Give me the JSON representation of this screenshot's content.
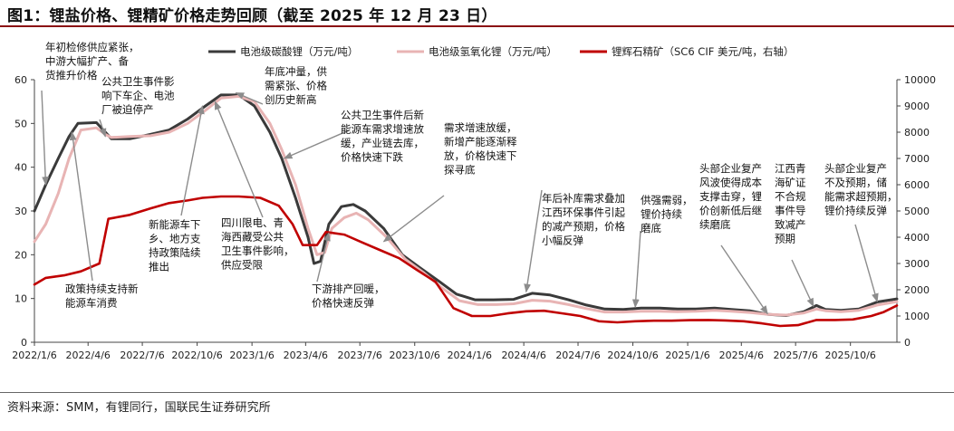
{
  "title": "图1：锂盐价格、锂精矿价格走势回顾（截至 2025 年 12 月 23 日）",
  "source": "资料来源：SMM，有锂同行，国联民生证券研究所",
  "chart_data": {
    "type": "line",
    "legend": [
      "电池级碳酸锂（万元/吨）",
      "电池级氢氧化锂（万元/吨）",
      "锂辉石精矿（SC6 CIF 美元/吨，右轴）"
    ],
    "legend_position": "top",
    "xlabels": [
      "2022/1/6",
      "2022/4/6",
      "2022/7/6",
      "2022/10/6",
      "2023/1/6",
      "2023/4/6",
      "2023/7/6",
      "2023/10/6",
      "2024/1/6",
      "2024/4/6",
      "2024/7/6",
      "2024/10/6",
      "2025/1/6",
      "2025/4/6",
      "2025/7/6",
      "2025/10/6"
    ],
    "x_start": "2022/1/6",
    "x_end": "2025/12/23",
    "ylim_left": [
      0,
      60
    ],
    "yticks_left": [
      "0",
      "10",
      "20",
      "30",
      "40",
      "50",
      "60"
    ],
    "ylim_right": [
      0,
      10000
    ],
    "yticks_right": [
      "0",
      "1000",
      "2000",
      "3000",
      "4000",
      "5000",
      "6000",
      "7000",
      "8000",
      "9000",
      "10000"
    ],
    "grid": false,
    "series": [
      {
        "name": "电池级碳酸锂（万元/吨）",
        "axis": "left",
        "color": "#3a3a3a",
        "points": [
          [
            "2022/1/6",
            30
          ],
          [
            "2022/1/25",
            36
          ],
          [
            "2022/2/15",
            42
          ],
          [
            "2022/3/5",
            47
          ],
          [
            "2022/3/20",
            50
          ],
          [
            "2022/4/20",
            50.2
          ],
          [
            "2022/5/5",
            48
          ],
          [
            "2022/5/15",
            46.5
          ],
          [
            "2022/6/15",
            46.5
          ],
          [
            "2022/7/20",
            47.5
          ],
          [
            "2022/8/20",
            48.5
          ],
          [
            "2022/9/20",
            51
          ],
          [
            "2022/10/20",
            54
          ],
          [
            "2022/11/15",
            56.5
          ],
          [
            "2022/12/15",
            56.5
          ],
          [
            "2023/1/10",
            54
          ],
          [
            "2023/2/5",
            48
          ],
          [
            "2023/2/25",
            42
          ],
          [
            "2023/3/20",
            33
          ],
          [
            "2023/4/10",
            24
          ],
          [
            "2023/4/20",
            18
          ],
          [
            "2023/5/1",
            18.5
          ],
          [
            "2023/5/15",
            27
          ],
          [
            "2023/6/5",
            31
          ],
          [
            "2023/6/25",
            31.5
          ],
          [
            "2023/7/15",
            30
          ],
          [
            "2023/8/15",
            26
          ],
          [
            "2023/9/15",
            20
          ],
          [
            "2023/10/15",
            17
          ],
          [
            "2023/11/15",
            14
          ],
          [
            "2023/12/15",
            11
          ],
          [
            "2024/1/15",
            9.7
          ],
          [
            "2024/2/15",
            9.7
          ],
          [
            "2024/3/20",
            9.8
          ],
          [
            "2024/4/20",
            11.2
          ],
          [
            "2024/5/20",
            10.8
          ],
          [
            "2024/6/20",
            9.7
          ],
          [
            "2024/7/20",
            8.5
          ],
          [
            "2024/8/20",
            7.6
          ],
          [
            "2024/9/20",
            7.5
          ],
          [
            "2024/10/20",
            7.8
          ],
          [
            "2024/11/20",
            7.8
          ],
          [
            "2024/12/20",
            7.6
          ],
          [
            "2025/1/20",
            7.6
          ],
          [
            "2025/2/20",
            7.8
          ],
          [
            "2025/3/20",
            7.5
          ],
          [
            "2025/4/20",
            7.2
          ],
          [
            "2025/5/20",
            6.4
          ],
          [
            "2025/6/20",
            6.1
          ],
          [
            "2025/7/20",
            7.0
          ],
          [
            "2025/8/10",
            8.4
          ],
          [
            "2025/8/25",
            7.5
          ],
          [
            "2025/9/20",
            7.3
          ],
          [
            "2025/10/20",
            7.6
          ],
          [
            "2025/11/20",
            9.2
          ],
          [
            "2025/12/23",
            9.9
          ]
        ]
      },
      {
        "name": "电池级氢氧化锂（万元/吨）",
        "axis": "left",
        "color": "#e8b4b4",
        "points": [
          [
            "2022/1/6",
            23
          ],
          [
            "2022/1/25",
            27
          ],
          [
            "2022/2/15",
            34
          ],
          [
            "2022/3/5",
            42
          ],
          [
            "2022/3/25",
            48.5
          ],
          [
            "2022/4/20",
            49
          ],
          [
            "2022/5/5",
            47.5
          ],
          [
            "2022/5/15",
            46.8
          ],
          [
            "2022/6/15",
            47
          ],
          [
            "2022/7/20",
            47.2
          ],
          [
            "2022/8/20",
            48
          ],
          [
            "2022/9/20",
            50
          ],
          [
            "2022/10/20",
            53
          ],
          [
            "2022/11/15",
            55.8
          ],
          [
            "2022/12/15",
            56.2
          ],
          [
            "2023/1/10",
            55
          ],
          [
            "2023/2/5",
            50
          ],
          [
            "2023/2/25",
            44
          ],
          [
            "2023/3/20",
            36
          ],
          [
            "2023/4/10",
            26
          ],
          [
            "2023/4/25",
            20
          ],
          [
            "2023/5/8",
            20.5
          ],
          [
            "2023/5/20",
            26
          ],
          [
            "2023/6/10",
            28.5
          ],
          [
            "2023/6/30",
            29.5
          ],
          [
            "2023/7/20",
            28
          ],
          [
            "2023/8/20",
            24
          ],
          [
            "2023/9/20",
            19
          ],
          [
            "2023/10/20",
            16
          ],
          [
            "2023/11/20",
            12.5
          ],
          [
            "2023/12/20",
            9.5
          ],
          [
            "2024/1/20",
            8.6
          ],
          [
            "2024/2/20",
            8.6
          ],
          [
            "2024/3/20",
            8.8
          ],
          [
            "2024/4/20",
            9.6
          ],
          [
            "2024/5/20",
            9.4
          ],
          [
            "2024/6/20",
            8.6
          ],
          [
            "2024/7/20",
            7.7
          ],
          [
            "2024/8/20",
            6.9
          ],
          [
            "2024/9/20",
            6.9
          ],
          [
            "2024/10/20",
            7.1
          ],
          [
            "2024/11/20",
            7.1
          ],
          [
            "2024/12/20",
            7.0
          ],
          [
            "2025/1/20",
            7.1
          ],
          [
            "2025/2/20",
            7.3
          ],
          [
            "2025/3/20",
            7.1
          ],
          [
            "2025/4/20",
            6.8
          ],
          [
            "2025/5/20",
            6.4
          ],
          [
            "2025/6/20",
            6.2
          ],
          [
            "2025/7/20",
            6.7
          ],
          [
            "2025/8/10",
            7.6
          ],
          [
            "2025/8/25",
            7.2
          ],
          [
            "2025/9/20",
            7.0
          ],
          [
            "2025/10/20",
            7.3
          ],
          [
            "2025/11/20",
            8.5
          ],
          [
            "2025/12/23",
            9.3
          ]
        ]
      },
      {
        "name": "锂辉石精矿（SC6 CIF 美元/吨，右轴）",
        "axis": "right",
        "color": "#c00000",
        "points": [
          [
            "2022/1/6",
            2200
          ],
          [
            "2022/1/25",
            2450
          ],
          [
            "2022/2/25",
            2550
          ],
          [
            "2022/3/25",
            2700
          ],
          [
            "2022/4/25",
            3000
          ],
          [
            "2022/5/10",
            4700
          ],
          [
            "2022/6/15",
            4850
          ],
          [
            "2022/7/20",
            5100
          ],
          [
            "2022/8/20",
            5300
          ],
          [
            "2022/9/20",
            5400
          ],
          [
            "2022/10/15",
            5500
          ],
          [
            "2022/11/15",
            5550
          ],
          [
            "2022/12/15",
            5550
          ],
          [
            "2023/1/20",
            5500
          ],
          [
            "2023/2/20",
            5200
          ],
          [
            "2023/3/15",
            4500
          ],
          [
            "2023/4/1",
            3700
          ],
          [
            "2023/4/25",
            3700
          ],
          [
            "2023/5/10",
            4200
          ],
          [
            "2023/6/10",
            4100
          ],
          [
            "2023/7/10",
            3800
          ],
          [
            "2023/8/10",
            3500
          ],
          [
            "2023/9/10",
            3200
          ],
          [
            "2023/10/10",
            2750
          ],
          [
            "2023/11/10",
            2300
          ],
          [
            "2023/12/10",
            1300
          ],
          [
            "2024/1/10",
            1000
          ],
          [
            "2024/2/10",
            1000
          ],
          [
            "2024/3/10",
            1100
          ],
          [
            "2024/4/10",
            1180
          ],
          [
            "2024/5/10",
            1200
          ],
          [
            "2024/6/10",
            1100
          ],
          [
            "2024/7/10",
            1000
          ],
          [
            "2024/8/10",
            800
          ],
          [
            "2024/9/10",
            760
          ],
          [
            "2024/10/10",
            800
          ],
          [
            "2024/11/10",
            820
          ],
          [
            "2024/12/10",
            820
          ],
          [
            "2025/1/10",
            840
          ],
          [
            "2025/2/10",
            850
          ],
          [
            "2025/3/10",
            830
          ],
          [
            "2025/4/10",
            800
          ],
          [
            "2025/5/10",
            720
          ],
          [
            "2025/6/10",
            620
          ],
          [
            "2025/7/10",
            650
          ],
          [
            "2025/8/10",
            850
          ],
          [
            "2025/9/10",
            850
          ],
          [
            "2025/10/10",
            870
          ],
          [
            "2025/11/10",
            1000
          ],
          [
            "2025/12/1",
            1150
          ],
          [
            "2025/12/23",
            1400
          ]
        ]
      }
    ],
    "annotations": [
      {
        "lines": [
          "年初检修供应紧张，",
          "中游大幅扩产、备",
          "货推升价格"
        ],
        "target": [
          "2022/1/25",
          36
        ]
      },
      {
        "lines": [
          "公共卫生事件影",
          "响下车企、电池",
          "厂被迫停产"
        ],
        "target": [
          "2022/5/5",
          47
        ]
      },
      {
        "lines": [
          "年底冲量，供",
          "需紧张、价格",
          "创历史新高"
        ],
        "target": [
          "2022/12/10",
          57
        ]
      },
      {
        "lines": [
          "政策持续支持新",
          "能源车消费"
        ],
        "target": [
          "2022/3/10",
          48
        ]
      },
      {
        "lines": [
          "新能源车下",
          "乡、地方支",
          "持政策陆续",
          "推出"
        ],
        "target": [
          "2022/10/15",
          54
        ]
      },
      {
        "lines": [
          "四川限电、青",
          "海西藏受公共",
          "卫生事件影响，",
          "供应受限"
        ],
        "target": [
          "2022/11/5",
          55
        ]
      },
      {
        "lines": [
          "公共卫生事件后新",
          "能源车需求增速放",
          "缓，产业链去库，",
          "价格快速下跌"
        ],
        "target": [
          "2023/3/1",
          42
        ]
      },
      {
        "lines": [
          "需求增速放缓，",
          "新增产能逐渐释",
          "放，价格快速下",
          "探寻底"
        ],
        "target": [
          "2023/8/15",
          23
        ]
      },
      {
        "lines": [
          "下游排产回暖，",
          "价格快速反弹"
        ],
        "target": [
          "2023/5/15",
          25
        ]
      },
      {
        "lines": [
          "年后补库需求叠加",
          "江西环保事件引起",
          "的减产预期，价格",
          "小幅反弹"
        ],
        "target": [
          "2024/4/10",
          11.5
        ]
      },
      {
        "lines": [
          "供强需弱，",
          "锂价持续",
          "磨底"
        ],
        "target": [
          "2024/10/10",
          8
        ]
      },
      {
        "lines": [
          "头部企业复产",
          "风波使得成本",
          "支撑击穿，锂",
          "价创新低后继",
          "续磨底"
        ],
        "target": [
          "2025/5/20",
          6.5
        ]
      },
      {
        "lines": [
          "江西青",
          "海矿证",
          "不合规",
          "事件导",
          "致减产",
          "预期"
        ],
        "target": [
          "2025/8/5",
          8.2
        ]
      },
      {
        "lines": [
          "头部企业复产",
          "不及预期，储",
          "能需求超预期，",
          "锂价持续反弹"
        ],
        "target": [
          "2025/11/20",
          9.3
        ]
      }
    ]
  }
}
